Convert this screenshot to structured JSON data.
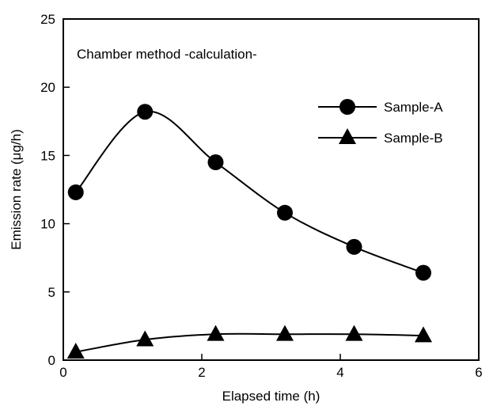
{
  "chart_data": {
    "type": "line",
    "title": "",
    "annotation": "Chamber method -calculation-",
    "xlabel": "Elapsed time (h)",
    "ylabel": "Emission rate (μg/h)",
    "xlim": [
      0,
      6
    ],
    "ylim": [
      0,
      25
    ],
    "xticks": [
      0,
      2,
      4,
      6
    ],
    "yticks": [
      0,
      5,
      10,
      15,
      20,
      25
    ],
    "grid": false,
    "legend_position": "top-right",
    "series": [
      {
        "name": "Sample-A",
        "marker": "circle",
        "x": [
          0.18,
          1.18,
          2.2,
          3.2,
          4.2,
          5.2
        ],
        "y": [
          12.3,
          18.2,
          14.5,
          10.8,
          8.3,
          6.4
        ]
      },
      {
        "name": "Sample-B",
        "marker": "triangle",
        "x": [
          0.18,
          1.18,
          2.2,
          3.2,
          4.2,
          5.2
        ],
        "y": [
          0.6,
          1.5,
          1.9,
          1.9,
          1.9,
          1.8
        ]
      }
    ]
  }
}
